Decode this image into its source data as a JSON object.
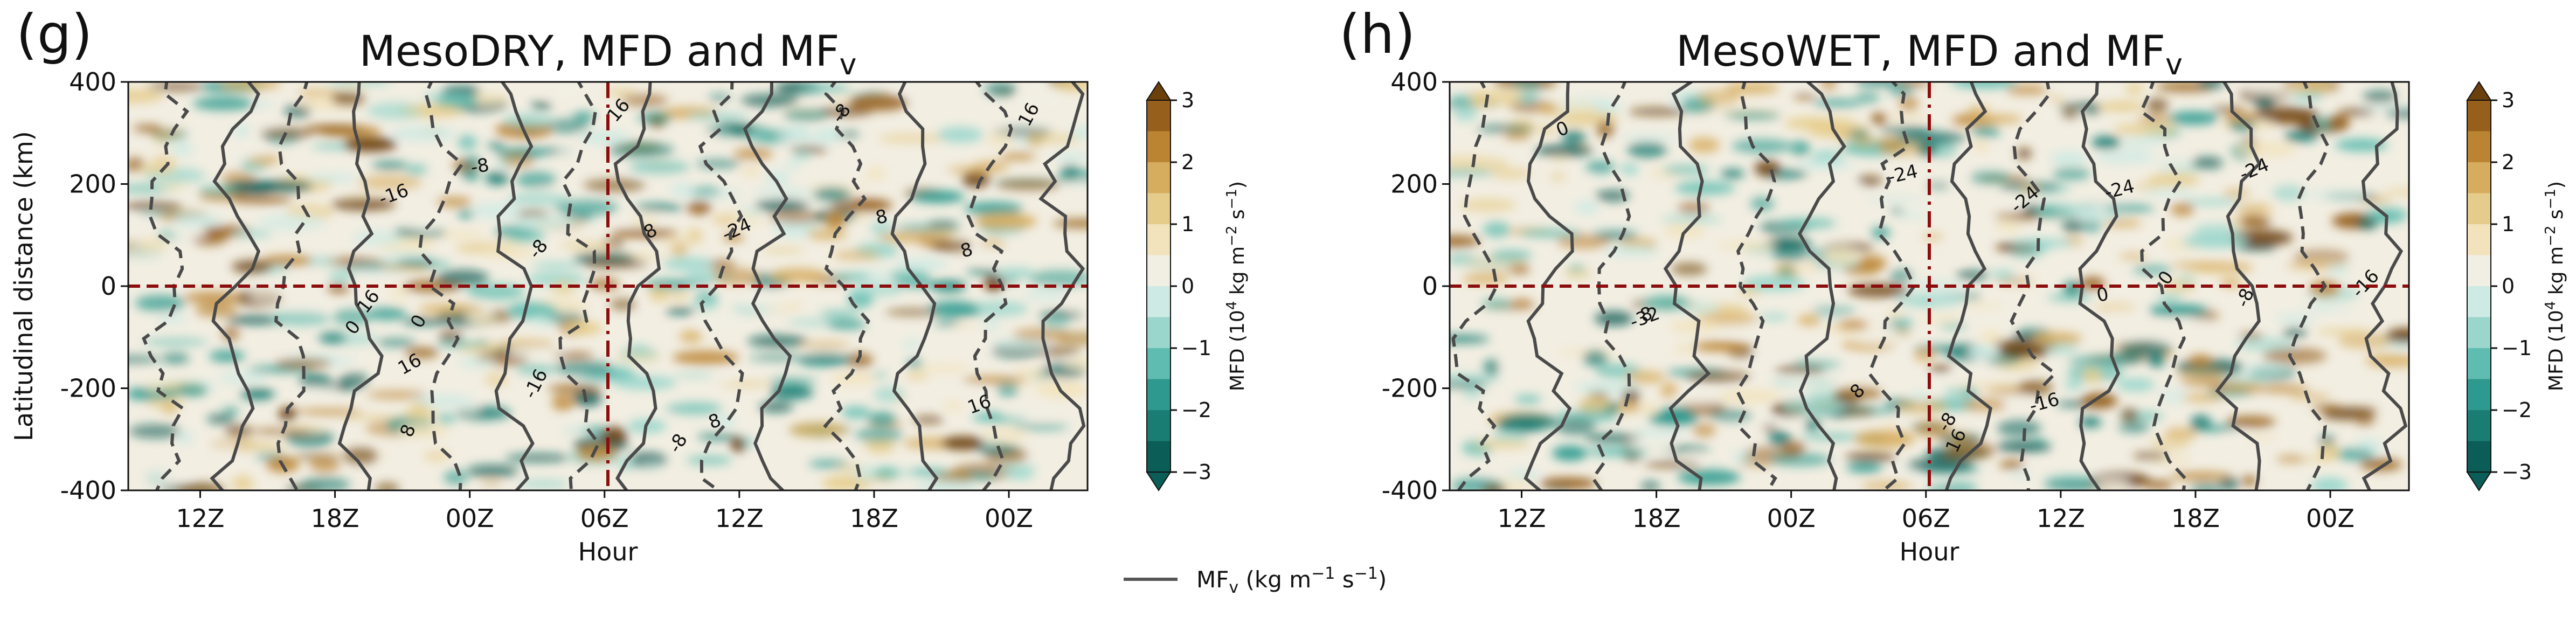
{
  "figure": {
    "legend_line_label": "MF",
    "legend_line_sub": "v",
    "legend_line_units": " (kg m",
    "legend_line_units_sup": "−1",
    "legend_line_units_2": " s",
    "legend_line_units_sup2": "−1",
    "legend_line_units_3": ")",
    "line_color": "#555555"
  },
  "chart_data": [
    {
      "type": "heatmap",
      "panel_letter": "(g)",
      "title": "MesoDRY, MFD and MF",
      "title_sub": "v",
      "ylabel": "Latitudinal distance (km)",
      "xlabel": "Hour",
      "x_ticks": [
        "12Z",
        "18Z",
        "00Z",
        "06Z",
        "12Z",
        "18Z",
        "00Z"
      ],
      "y_ticks": [
        "400",
        "200",
        "0",
        "-200",
        "-400"
      ],
      "ylim": [
        -400,
        400
      ],
      "contour_labels": [
        "-24",
        "-16",
        "-16",
        "16",
        "-8",
        "-8",
        "0",
        "8",
        "16",
        "16",
        "8",
        "8",
        "0",
        "-8",
        "-8",
        "16",
        "16",
        "8",
        "8"
      ],
      "reference_lines": {
        "horizontal_y": 0,
        "vertical_x": "06Z"
      },
      "colorbar": {
        "label": "MFD (10",
        "label_sup": "4",
        "label_units": " kg m",
        "label_units_sup": "−2",
        "label_units_2": " s",
        "label_units_sup2": "−1",
        "label_end": ")",
        "ticks": [
          "3",
          "2",
          "1",
          "0",
          "−1",
          "−2",
          "−3"
        ],
        "range": [
          -3,
          3
        ]
      }
    },
    {
      "type": "heatmap",
      "panel_letter": "(h)",
      "title": "MesoWET, MFD and MF",
      "title_sub": "v",
      "ylabel": "",
      "xlabel": "Hour",
      "x_ticks": [
        "12Z",
        "18Z",
        "00Z",
        "06Z",
        "12Z",
        "18Z",
        "00Z"
      ],
      "y_ticks": [
        "400",
        "200",
        "0",
        "-200",
        "-400"
      ],
      "ylim": [
        -400,
        400
      ],
      "contour_labels": [
        "-24",
        "-24",
        "-16",
        "-16",
        "-8",
        "0",
        "16",
        "8",
        "0",
        "-8",
        "-32",
        "-24",
        "-24",
        "0",
        "8"
      ],
      "reference_lines": {
        "horizontal_y": 0,
        "vertical_x": "06Z"
      },
      "colorbar": {
        "label": "MFD (10",
        "label_sup": "4",
        "label_units": " kg m",
        "label_units_sup": "−2",
        "label_units_2": " s",
        "label_units_sup2": "−1",
        "label_end": ")",
        "ticks": [
          "3",
          "2",
          "1",
          "0",
          "−1",
          "−2",
          "−3"
        ],
        "range": [
          -3,
          3
        ]
      }
    }
  ]
}
